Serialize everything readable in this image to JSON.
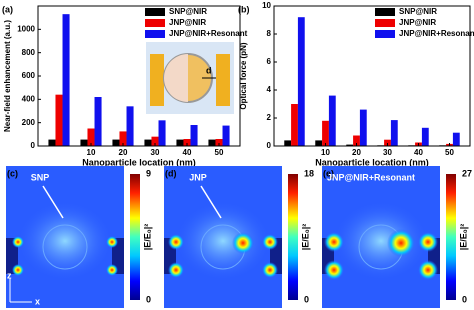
{
  "chart_data": [
    {
      "type": "bar",
      "panel": "(a)",
      "ylabel": "Near-field enhancement (a.u.)",
      "xlabel": "Nanoparticle location (nm)",
      "categories": [
        null,
        "10",
        "20",
        "30",
        "40",
        "50"
      ],
      "series": [
        {
          "name": "SNP@NIR",
          "color": "#000000",
          "values": [
            55,
            55,
            55,
            55,
            55,
            55
          ]
        },
        {
          "name": "JNP@NIR",
          "color": "#ee0000",
          "values": [
            440,
            150,
            125,
            80,
            60,
            60
          ]
        },
        {
          "name": "JNP@NIR+Resonant",
          "color": "#1010ee",
          "values": [
            1130,
            420,
            340,
            220,
            180,
            175
          ]
        }
      ],
      "ylim": [
        0,
        1200
      ],
      "yticks": [
        0,
        200,
        400,
        600,
        800,
        1000
      ],
      "legend": "upper right",
      "inset_label": "d"
    },
    {
      "type": "bar",
      "panel": "(b)",
      "ylabel": "Optical force (pN)",
      "xlabel": "Nanoparticle location (nm)",
      "categories": [
        null,
        "10",
        "20",
        "30",
        "40",
        "50"
      ],
      "series": [
        {
          "name": "SNP@NIR",
          "color": "#000000",
          "values": [
            0.4,
            0.4,
            0.1,
            0.05,
            0.05,
            0.05
          ]
        },
        {
          "name": "JNP@NIR",
          "color": "#ee0000",
          "values": [
            3.0,
            1.8,
            0.75,
            0.45,
            0.25,
            0.15
          ]
        },
        {
          "name": "JNP@NIR+Resonant",
          "color": "#1010ee",
          "values": [
            9.2,
            3.6,
            2.6,
            1.85,
            1.3,
            0.95
          ]
        }
      ],
      "ylim": [
        0,
        10
      ],
      "yticks": [
        0,
        2,
        4,
        6,
        8,
        10
      ],
      "legend": "upper right"
    }
  ],
  "field_maps": [
    {
      "panel": "(c)",
      "label": "SNP",
      "colorbar_label": "|E/E₀|²",
      "cmax": 9,
      "cmin": 0,
      "axes": [
        "z",
        "x"
      ]
    },
    {
      "panel": "(d)",
      "label": "JNP",
      "colorbar_label": "|E/E₀|²",
      "cmax": 18,
      "cmin": 0
    },
    {
      "panel": "(e)",
      "label": "JNP@NIR+Resonant",
      "colorbar_label": "|E/E₀|²",
      "cmax": 27,
      "cmin": 0
    }
  ]
}
